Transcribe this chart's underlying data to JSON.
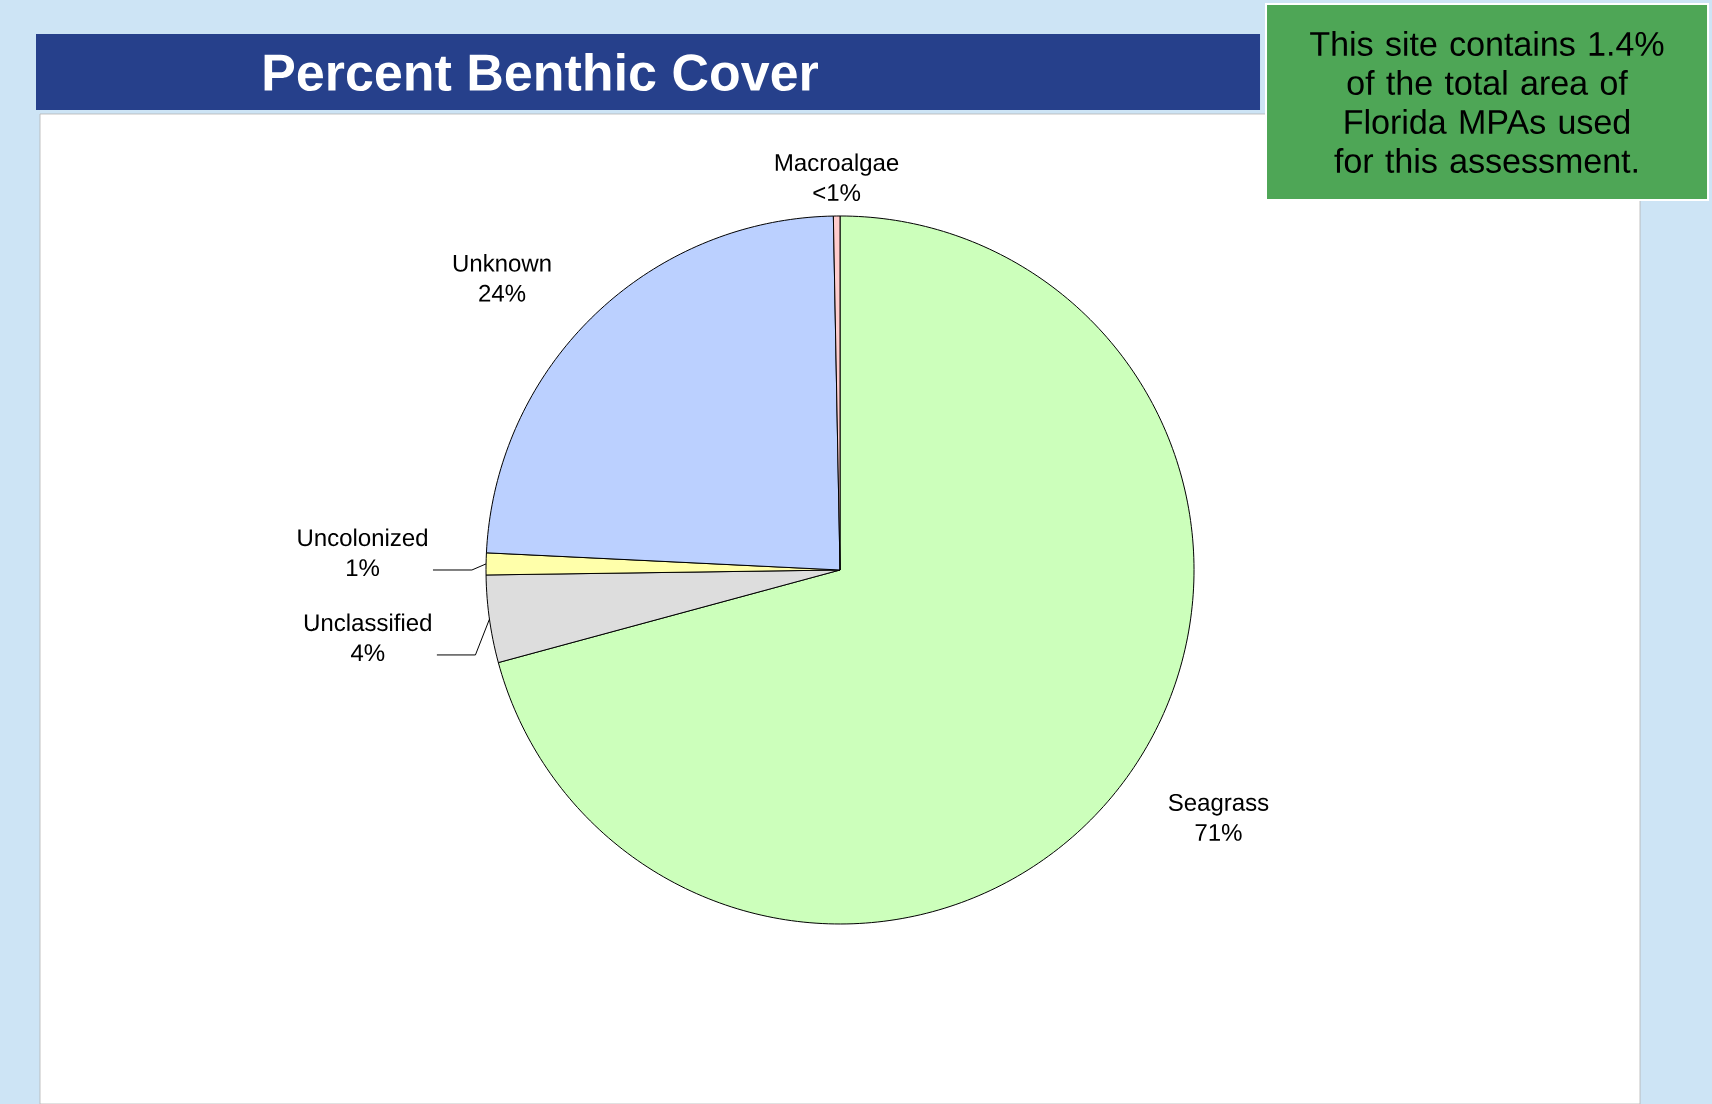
{
  "chart_data": {
    "type": "pie",
    "title": "Percent Benthic Cover",
    "categories": [
      "Seagrass",
      "Unclassified",
      "Uncolonized",
      "Unknown",
      "Macroalgae"
    ],
    "values": [
      71,
      4,
      1,
      24,
      0.3
    ],
    "value_labels": [
      "71%",
      "4%",
      "1%",
      "24%",
      "<1%"
    ],
    "colors": [
      "#ccffbb",
      "#dddddd",
      "#ffffaa",
      "#bbd0ff",
      "#ffcccc"
    ],
    "annotations": [
      "This site contains 1.4% of the total area of Florida MPAs used for this assessment."
    ]
  }
}
